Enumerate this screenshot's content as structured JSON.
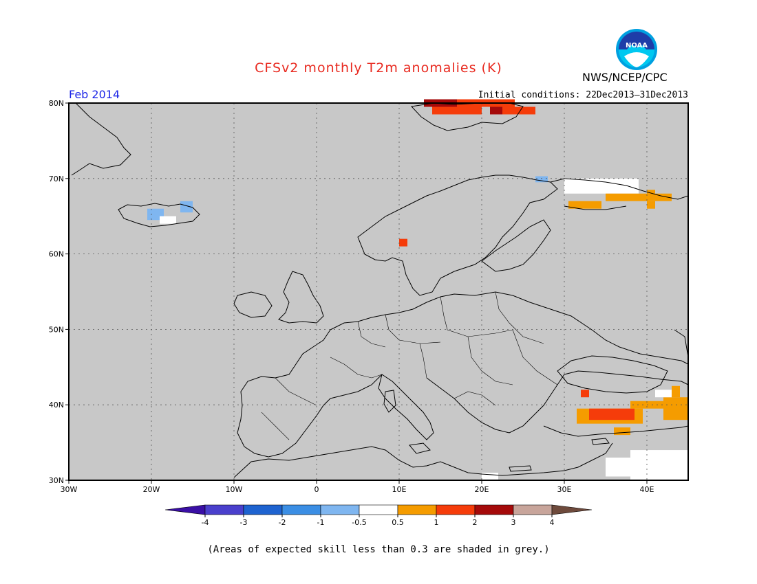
{
  "header": {
    "title": "CFSv2 monthly T2m anomalies (K)",
    "organization": "NWS/NCEP/CPC",
    "logo_text": "NOAA",
    "forecast_month": "Feb 2014",
    "initial_conditions": "Initial conditions: 22Dec2013–31Dec2013"
  },
  "map": {
    "lon_range": [
      -30,
      45
    ],
    "lat_range": [
      30,
      80
    ],
    "background": "#c8c8c8",
    "lon_ticks": [
      "30W",
      "20W",
      "10W",
      "0",
      "10E",
      "20E",
      "30E",
      "40E"
    ],
    "lat_ticks": [
      "30N",
      "40N",
      "50N",
      "60N",
      "70N",
      "80N"
    ],
    "lon_tick_values": [
      -30,
      -20,
      -10,
      0,
      10,
      20,
      30,
      40
    ],
    "lat_tick_values": [
      30,
      40,
      50,
      60,
      70,
      80
    ],
    "anomaly_cells": [
      {
        "region": "Svalbard",
        "lon": 13,
        "lat": 79.5,
        "w": 4,
        "h": 1,
        "cat": 3
      },
      {
        "region": "Svalbard",
        "lon": 17,
        "lat": 79.5,
        "w": 7,
        "h": 1,
        "cat": 2
      },
      {
        "region": "Svalbard",
        "lon": 14,
        "lat": 78.5,
        "w": 6,
        "h": 1,
        "cat": 2
      },
      {
        "region": "Svalbard",
        "lon": 22.5,
        "lat": 78.5,
        "w": 4,
        "h": 1,
        "cat": 2
      },
      {
        "region": "Svalbard",
        "lon": 21,
        "lat": 78.5,
        "w": 1.5,
        "h": 1,
        "cat": 3
      },
      {
        "region": "Norway",
        "lon": 10,
        "lat": 61,
        "w": 1,
        "h": 1,
        "cat": 2
      },
      {
        "region": "Iceland",
        "lon": -20.5,
        "lat": 64.5,
        "w": 2,
        "h": 1.5,
        "cat": -1
      },
      {
        "region": "Iceland",
        "lon": -16.5,
        "lat": 65.5,
        "w": 1.5,
        "h": 1.5,
        "cat": -1
      },
      {
        "region": "Iceland",
        "lon": -19,
        "lat": 64,
        "w": 2,
        "h": 1,
        "cat": 0
      },
      {
        "region": "Kola",
        "lon": 30,
        "lat": 68,
        "w": 9,
        "h": 2,
        "cat": 0
      },
      {
        "region": "Kola",
        "lon": 35,
        "lat": 67,
        "w": 8,
        "h": 1,
        "cat": 1
      },
      {
        "region": "Kola",
        "lon": 30.5,
        "lat": 66,
        "w": 4,
        "h": 1,
        "cat": 1
      },
      {
        "region": "Kola",
        "lon": 40,
        "lat": 66,
        "w": 1,
        "h": 1,
        "cat": 1
      },
      {
        "region": "Kola",
        "lon": 40,
        "lat": 67.5,
        "w": 1,
        "h": 1,
        "cat": 1
      },
      {
        "region": "Kola",
        "lon": 26.5,
        "lat": 69.5,
        "w": 1.5,
        "h": 0.8,
        "cat": -1
      },
      {
        "region": "Turkey",
        "lon": 31.5,
        "lat": 37.5,
        "w": 8,
        "h": 2,
        "cat": 1
      },
      {
        "region": "Turkey",
        "lon": 33,
        "lat": 38,
        "w": 5.5,
        "h": 1.5,
        "cat": 2
      },
      {
        "region": "Turkey",
        "lon": 32,
        "lat": 41,
        "w": 1,
        "h": 1,
        "cat": 2
      },
      {
        "region": "Turkey",
        "lon": 38,
        "lat": 39.5,
        "w": 4.5,
        "h": 1,
        "cat": 1
      },
      {
        "region": "Turkey",
        "lon": 42,
        "lat": 38,
        "w": 3,
        "h": 3,
        "cat": 1
      },
      {
        "region": "Turkey",
        "lon": 43,
        "lat": 41,
        "w": 1,
        "h": 1.5,
        "cat": 1
      },
      {
        "region": "Turkey",
        "lon": 36,
        "lat": 36,
        "w": 2,
        "h": 1,
        "cat": 1
      },
      {
        "region": "MiddleEast",
        "lon": 38,
        "lat": 30,
        "w": 7,
        "h": 4,
        "cat": 0
      },
      {
        "region": "MiddleEast",
        "lon": 35,
        "lat": 30.5,
        "w": 3,
        "h": 2.5,
        "cat": 0
      },
      {
        "region": "Caucasus",
        "lon": 41,
        "lat": 41,
        "w": 2,
        "h": 1,
        "cat": 0
      },
      {
        "region": "Egypt",
        "lon": 20,
        "lat": 30,
        "w": 2,
        "h": 1,
        "cat": 0
      }
    ]
  },
  "colorbar": {
    "labels": [
      "-4",
      "-3",
      "-2",
      "-1",
      "-0.5",
      "0.5",
      "1",
      "2",
      "3",
      "4"
    ],
    "colors": [
      "#3a0fa5",
      "#4a3fcc",
      "#1e63d0",
      "#3b8ee4",
      "#7fb6f0",
      "#ffffff",
      "#f59c00",
      "#f53c0a",
      "#a50a0a",
      "#c8a59b",
      "#6e4a3c"
    ]
  },
  "footer": {
    "note": "(Areas of expected skill less than 0.3 are shaded in grey.)"
  }
}
